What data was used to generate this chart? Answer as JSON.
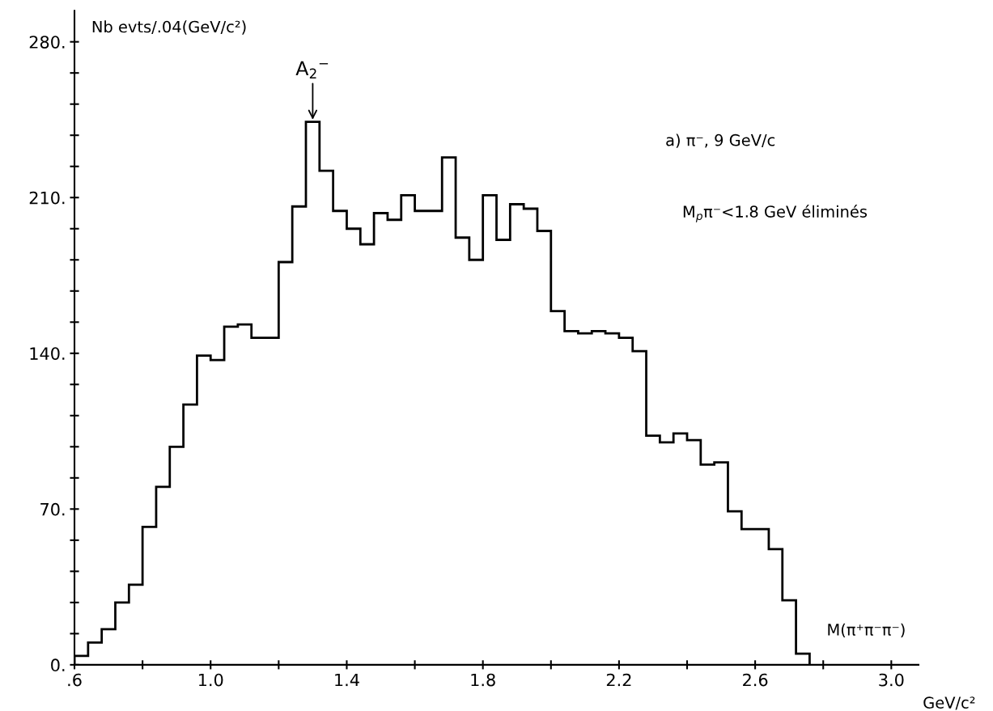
{
  "chart_data": {
    "type": "histogram",
    "color": "#000000",
    "bins": [
      0.6,
      0.64,
      0.68,
      0.72,
      0.76,
      0.8,
      0.84,
      0.88,
      0.92,
      0.96,
      1.0,
      1.04,
      1.08,
      1.12,
      1.16,
      1.2,
      1.24,
      1.28,
      1.32,
      1.36,
      1.4,
      1.44,
      1.48,
      1.52,
      1.56,
      1.6,
      1.64,
      1.68,
      1.72,
      1.76,
      1.8,
      1.84,
      1.88,
      1.92,
      1.96,
      2.0,
      2.04,
      2.08,
      2.12,
      2.16,
      2.2,
      2.24,
      2.28,
      2.32,
      2.36,
      2.4,
      2.44,
      2.48,
      2.52,
      2.56,
      2.6,
      2.64,
      2.68,
      2.72,
      2.76
    ],
    "values": [
      4,
      10,
      16,
      28,
      36,
      62,
      80,
      98,
      117,
      139,
      137,
      152,
      153,
      147,
      147,
      181,
      206,
      244,
      222,
      204,
      196,
      189,
      203,
      200,
      211,
      204,
      204,
      228,
      192,
      182,
      211,
      191,
      207,
      205,
      195,
      159,
      150,
      149,
      150,
      149,
      147,
      141,
      103,
      100,
      104,
      101,
      90,
      91,
      69,
      61,
      61,
      52,
      29,
      5
    ],
    "ylabel": "Nb evts/.04(GeV/c²)",
    "xlabel": "M(π⁺π⁻π⁻)",
    "annotations": [
      {
        "text": "A$_{2}$$^{−}$",
        "x": 1.3,
        "y": 244
      },
      "a) π⁻, 9 GeV/c",
      "M$_{p}$π⁻<1.8 GeV éliminés",
      "GeV/c²"
    ],
    "xlim": [
      0.6,
      3.08
    ],
    "ylim": [
      0,
      294
    ],
    "xticks": [
      {
        "value": 0.6,
        "label": ".6"
      },
      {
        "value": 0.8,
        "label": null
      },
      {
        "value": 1.0,
        "label": "1.0"
      },
      {
        "value": 1.2,
        "label": null
      },
      {
        "value": 1.4,
        "label": "1.4"
      },
      {
        "value": 1.6,
        "label": null
      },
      {
        "value": 1.8,
        "label": "1.8"
      },
      {
        "value": 2.0,
        "label": null
      },
      {
        "value": 2.2,
        "label": "2.2"
      },
      {
        "value": 2.4,
        "label": null
      },
      {
        "value": 2.6,
        "label": "2.6"
      },
      {
        "value": 2.8,
        "label": null
      },
      {
        "value": 3.0,
        "label": "3.0"
      }
    ],
    "yticks": [
      {
        "value": 0,
        "label": "0."
      },
      {
        "value": 14,
        "label": null
      },
      {
        "value": 28,
        "label": null
      },
      {
        "value": 42,
        "label": null
      },
      {
        "value": 56,
        "label": null
      },
      {
        "value": 70,
        "label": "70."
      },
      {
        "value": 84,
        "label": null
      },
      {
        "value": 98,
        "label": null
      },
      {
        "value": 112,
        "label": null
      },
      {
        "value": 126,
        "label": null
      },
      {
        "value": 140,
        "label": "140."
      },
      {
        "value": 154,
        "label": null
      },
      {
        "value": 168,
        "label": null
      },
      {
        "value": 182,
        "label": null
      },
      {
        "value": 196,
        "label": null
      },
      {
        "value": 210,
        "label": "210."
      },
      {
        "value": 224,
        "label": null
      },
      {
        "value": 238,
        "label": null
      },
      {
        "value": 252,
        "label": null
      },
      {
        "value": 266,
        "label": null
      },
      {
        "value": 280,
        "label": "280."
      }
    ],
    "grid": false
  }
}
